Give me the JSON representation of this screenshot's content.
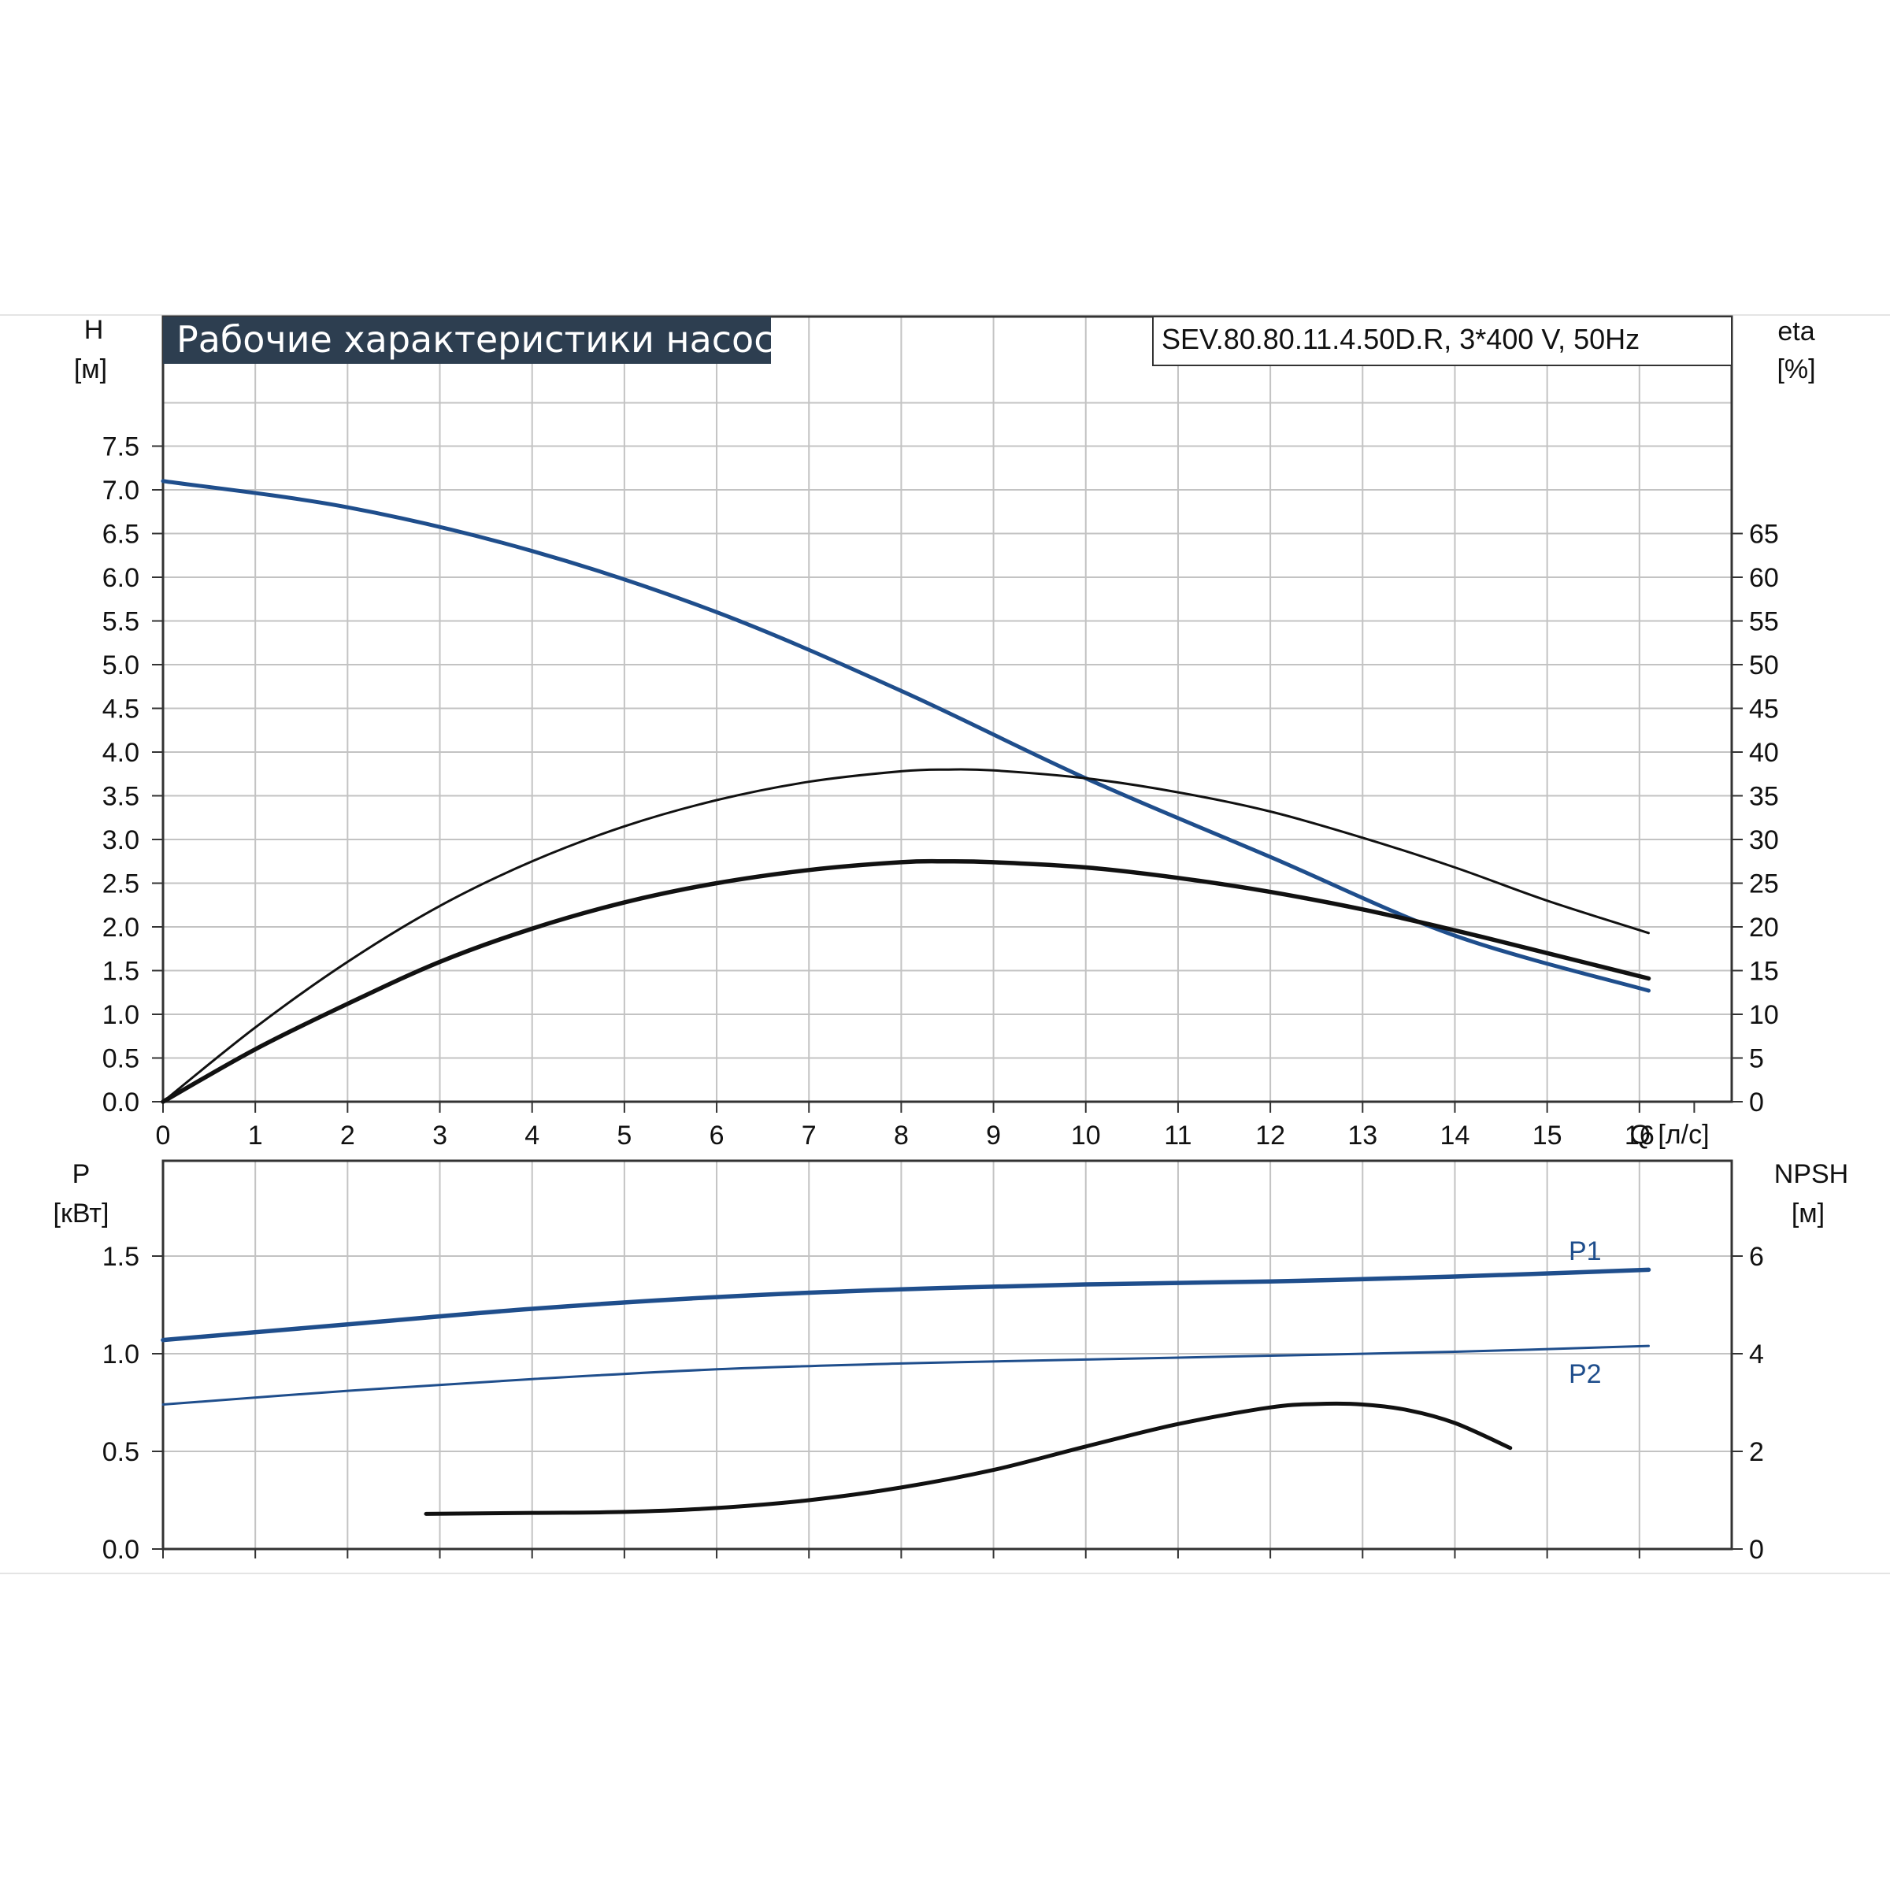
{
  "chart_data": [
    {
      "type": "line",
      "title": "Рабочие характеристики насоса",
      "model_label": "SEV.80.80.11.4.50D.R, 3*400 V, 50Hz",
      "xlabel": "Q [л/с]",
      "ylabel_left": {
        "line1": "H",
        "line2": "[м]"
      },
      "ylabel_right": {
        "line1": "eta",
        "line2": "[%]"
      },
      "xlim": [
        0,
        17
      ],
      "ylim_left": [
        0,
        8
      ],
      "ylim_right": [
        0,
        80
      ],
      "grid": true,
      "x_ticks": [
        "0",
        "1",
        "2",
        "3",
        "4",
        "5",
        "6",
        "7",
        "8",
        "9",
        "10",
        "11",
        "12",
        "13",
        "14",
        "15",
        "16"
      ],
      "y_ticks_left": [
        "0.0",
        "0.5",
        "1.0",
        "1.5",
        "2.0",
        "2.5",
        "3.0",
        "3.5",
        "4.0",
        "4.5",
        "5.0",
        "5.5",
        "6.0",
        "6.5",
        "7.0",
        "7.5"
      ],
      "y_ticks_right": [
        "0",
        "5",
        "10",
        "15",
        "20",
        "25",
        "30",
        "35",
        "40",
        "45",
        "50",
        "55",
        "60",
        "65"
      ],
      "series": [
        {
          "axis": "left",
          "color": "#1f4e8c",
          "x": [
            0,
            2,
            4,
            6,
            8,
            10,
            12,
            14,
            16.1
          ],
          "y": [
            7.1,
            6.8,
            6.3,
            5.6,
            4.7,
            3.7,
            2.8,
            1.9,
            1.27
          ]
        },
        {
          "axis": "right",
          "color": "#111111",
          "x": [
            0,
            1,
            2,
            3,
            4,
            5,
            6,
            7,
            8,
            8.5,
            9,
            10,
            11,
            12,
            13,
            14,
            15,
            16.1
          ],
          "y": [
            0,
            8.5,
            16,
            22.4,
            27.5,
            31.5,
            34.5,
            36.6,
            37.8,
            38,
            37.9,
            37,
            35.4,
            33.2,
            30.2,
            26.8,
            23,
            19.3
          ]
        },
        {
          "axis": "left",
          "color": "#111111",
          "x": [
            0,
            1,
            2,
            3,
            4,
            5,
            6,
            7,
            8,
            8.5,
            9,
            10,
            11,
            12,
            13,
            14,
            15,
            16.1
          ],
          "y": [
            0,
            0.6,
            1.12,
            1.6,
            1.98,
            2.28,
            2.5,
            2.65,
            2.74,
            2.75,
            2.74,
            2.68,
            2.56,
            2.4,
            2.2,
            1.96,
            1.7,
            1.41
          ]
        }
      ]
    },
    {
      "type": "line",
      "xlim": [
        0,
        17
      ],
      "ylim_left": [
        0,
        2
      ],
      "ylim_right": [
        0,
        8
      ],
      "grid": true,
      "ylabel_left": {
        "line1": "P",
        "line2": "[кВт]"
      },
      "ylabel_right": {
        "line1": "NPSH",
        "line2": "[м]"
      },
      "y_ticks_left": [
        "0.0",
        "0.5",
        "1.0",
        "1.5"
      ],
      "y_ticks_right": [
        "0",
        "2",
        "4",
        "6"
      ],
      "series": [
        {
          "name": "P1",
          "axis": "left",
          "color": "#1f4e8c",
          "x": [
            0,
            2,
            4,
            6,
            8,
            10,
            12,
            14,
            16.1
          ],
          "y": [
            1.07,
            1.15,
            1.23,
            1.29,
            1.33,
            1.355,
            1.37,
            1.395,
            1.43
          ]
        },
        {
          "name": "P2",
          "axis": "left",
          "color": "#1f4e8c",
          "x": [
            0,
            2,
            4,
            6,
            8,
            10,
            12,
            14,
            16.1
          ],
          "y": [
            0.74,
            0.81,
            0.87,
            0.92,
            0.95,
            0.97,
            0.99,
            1.01,
            1.04
          ]
        },
        {
          "axis": "right",
          "color": "#111111",
          "x": [
            2.85,
            4,
            5,
            6,
            7,
            8,
            9,
            10,
            11,
            12,
            12.5,
            13,
            13.5,
            14,
            14.6
          ],
          "y": [
            0.72,
            0.74,
            0.76,
            0.84,
            1.0,
            1.26,
            1.62,
            2.1,
            2.56,
            2.9,
            2.97,
            2.96,
            2.84,
            2.58,
            2.07
          ]
        }
      ]
    }
  ]
}
